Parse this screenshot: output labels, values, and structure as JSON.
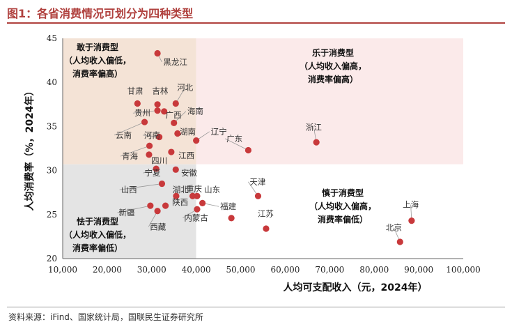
{
  "header": {
    "title": "图1：各省消费情况可划分为四种类型"
  },
  "footer": {
    "source": "资料来源：iFind、国家统计局，国联民生证券研究所"
  },
  "chart_data": {
    "type": "scatter",
    "xlabel": "人均可支配收入（元，2024年）",
    "ylabel": "人均消费率（%，2024年）",
    "xlim": [
      10000,
      100000
    ],
    "ylim": [
      20,
      45
    ],
    "xticks": [
      "10,000",
      "20,000",
      "30,000",
      "40,000",
      "50,000",
      "60,000",
      "70,000",
      "80,000",
      "90,000",
      "100,000"
    ],
    "yticks": [
      "20",
      "25",
      "30",
      "35",
      "40",
      "45"
    ],
    "divider": {
      "x": 40000,
      "y": 30.7
    },
    "colors": {
      "point": "#c8393b",
      "q_top_left": "#f4e3d6",
      "q_top_right": "#fbeaea",
      "q_bottom_left": "#e4e4e4"
    },
    "quadrants": [
      {
        "id": "top-left",
        "lines": [
          "敢于消费型",
          "（人均收入偏低，",
          "消费率偏高）"
        ]
      },
      {
        "id": "top-right",
        "lines": [
          "乐于消费型",
          "（人均收入偏高，",
          "消费率偏高）"
        ]
      },
      {
        "id": "bottom-left",
        "lines": [
          "怯于消费型",
          "（人均收入偏低，",
          "消费率偏低）"
        ]
      },
      {
        "id": "bottom-right",
        "lines": [
          "慎于消费型",
          "（人均收入偏高，",
          "消费率偏低）"
        ]
      }
    ],
    "points": [
      {
        "name": "黑龙江",
        "x": 31300,
        "y": 43.3,
        "lx": 32600,
        "ly": 42.0,
        "anchor": "start"
      },
      {
        "name": "甘肃",
        "x": 26800,
        "y": 37.6,
        "lx": 26300,
        "ly": 38.7,
        "anchor": "middle"
      },
      {
        "name": "吉林",
        "x": 31300,
        "y": 37.5,
        "lx": 31900,
        "ly": 38.7,
        "anchor": "middle"
      },
      {
        "name": "河北",
        "x": 35400,
        "y": 37.6,
        "lx": 37500,
        "ly": 39.1,
        "anchor": "middle"
      },
      {
        "name": "贵州",
        "x": 31300,
        "y": 36.8,
        "lx": 26100,
        "ly": 36.2,
        "anchor": "start"
      },
      {
        "name": "广西",
        "x": 32800,
        "y": 36.7,
        "lx": 33100,
        "ly": 36.0,
        "anchor": "start"
      },
      {
        "name": "海南",
        "x": 35000,
        "y": 35.4,
        "lx": 38000,
        "ly": 36.4,
        "anchor": "start"
      },
      {
        "name": "云南",
        "x": 28400,
        "y": 35.5,
        "lx": 21900,
        "ly": 33.7,
        "anchor": "start"
      },
      {
        "name": "河南",
        "x": 31700,
        "y": 33.8,
        "lx": 28300,
        "ly": 33.7,
        "anchor": "start"
      },
      {
        "name": "湖南",
        "x": 35800,
        "y": 34.2,
        "lx": 36300,
        "ly": 34.1,
        "anchor": "start"
      },
      {
        "name": "辽宁",
        "x": 40000,
        "y": 33.4,
        "lx": 43300,
        "ly": 34.1,
        "anchor": "start"
      },
      {
        "name": "广东",
        "x": 51700,
        "y": 32.3,
        "lx": 46800,
        "ly": 33.3,
        "anchor": "start"
      },
      {
        "name": "浙江",
        "x": 67000,
        "y": 33.2,
        "lx": 66400,
        "ly": 34.6,
        "anchor": "middle"
      },
      {
        "name": "青海",
        "x": 29500,
        "y": 32.8,
        "lx": 23300,
        "ly": 31.3,
        "anchor": "start"
      },
      {
        "name": "江西",
        "x": 34400,
        "y": 32.1,
        "lx": 36000,
        "ly": 31.4,
        "anchor": "start"
      },
      {
        "name": "四川",
        "x": 29400,
        "y": 31.8,
        "lx": 29900,
        "ly": 30.8,
        "anchor": "start"
      },
      {
        "name": "宁夏",
        "x": 31000,
        "y": 30.2,
        "lx": 28400,
        "ly": 29.4,
        "anchor": "start"
      },
      {
        "name": "安徽",
        "x": 35400,
        "y": 30.1,
        "lx": 36600,
        "ly": 29.4,
        "anchor": "start"
      },
      {
        "name": "天津",
        "x": 53900,
        "y": 27.1,
        "lx": 52000,
        "ly": 28.4,
        "anchor": "start"
      },
      {
        "name": "山西",
        "x": 32300,
        "y": 28.5,
        "lx": 23100,
        "ly": 27.5,
        "anchor": "start"
      },
      {
        "name": "湖北",
        "x": 35500,
        "y": 27.1,
        "lx": 34700,
        "ly": 27.5,
        "anchor": "start"
      },
      {
        "name": "重庆",
        "x": 39200,
        "y": 27.1,
        "lx": 37700,
        "ly": 27.6,
        "anchor": "start"
      },
      {
        "name": "山东",
        "x": 40200,
        "y": 27.1,
        "lx": 41800,
        "ly": 27.5,
        "anchor": "start"
      },
      {
        "name": "陕西",
        "x": 33100,
        "y": 26.0,
        "lx": 34600,
        "ly": 26.1,
        "anchor": "start"
      },
      {
        "name": "新疆",
        "x": 29700,
        "y": 26.0,
        "lx": 22600,
        "ly": 24.9,
        "anchor": "start"
      },
      {
        "name": "福建",
        "x": 41400,
        "y": 26.3,
        "lx": 45400,
        "ly": 25.6,
        "anchor": "start"
      },
      {
        "name": "江苏",
        "x": 55700,
        "y": 23.4,
        "lx": 55600,
        "ly": 24.8,
        "anchor": "middle"
      },
      {
        "name": "西藏",
        "x": 31300,
        "y": 25.4,
        "lx": 29600,
        "ly": 23.3,
        "anchor": "start"
      },
      {
        "name": "内蒙古",
        "x": 40200,
        "y": 25.6,
        "lx": 37300,
        "ly": 24.3,
        "anchor": "start"
      },
      {
        "name": "上海",
        "x": 88400,
        "y": 24.3,
        "lx": 88200,
        "ly": 25.8,
        "anchor": "middle"
      },
      {
        "name": "北京",
        "x": 85800,
        "y": 21.9,
        "lx": 84400,
        "ly": 23.2,
        "anchor": "middle"
      },
      {
        "name": "",
        "x": 47900,
        "y": 24.6,
        "lx": 47900,
        "ly": 24.6,
        "anchor": "start"
      }
    ]
  }
}
